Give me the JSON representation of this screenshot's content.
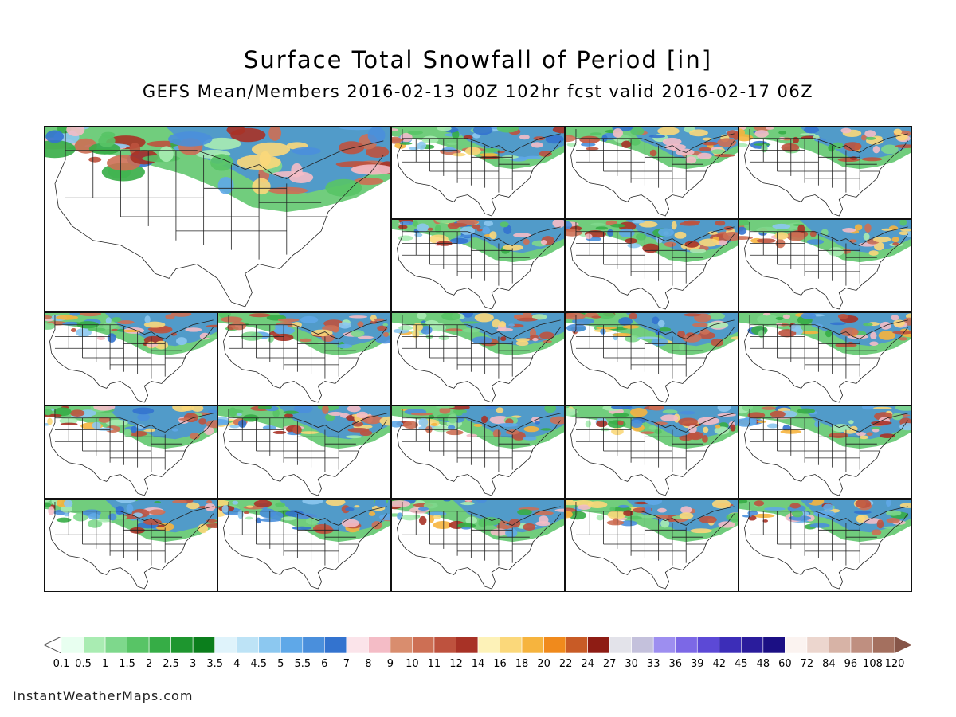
{
  "title": "Surface Total Snowfall of Period [in]",
  "subtitle": "GEFS Mean/Members 2016-02-13 00Z 102hr fcst valid 2016-02-17 06Z",
  "source_credit": "InstantWeatherMaps.com",
  "grid": {
    "rows": 5,
    "cols": 5,
    "mean_panel": "2x2 top-left",
    "member_panels": 21
  },
  "colorbar": {
    "bins": [
      {
        "label": "0.1",
        "color": "#e8fff0"
      },
      {
        "label": "0.5",
        "color": "#a9ecb2"
      },
      {
        "label": "1",
        "color": "#7ed88c"
      },
      {
        "label": "1.5",
        "color": "#58c466"
      },
      {
        "label": "2",
        "color": "#36ad46"
      },
      {
        "label": "2.5",
        "color": "#1e962f"
      },
      {
        "label": "3",
        "color": "#0b7e1c"
      },
      {
        "label": "3.5",
        "color": "#dff3fb"
      },
      {
        "label": "4",
        "color": "#bde3f6"
      },
      {
        "label": "4.5",
        "color": "#8cc8f0"
      },
      {
        "label": "5",
        "color": "#5fa8e8"
      },
      {
        "label": "5.5",
        "color": "#4a8fdc"
      },
      {
        "label": "6",
        "color": "#3373cf"
      },
      {
        "label": "7",
        "color": "#fbe4ea"
      },
      {
        "label": "8",
        "color": "#f4bcc6"
      },
      {
        "label": "9",
        "color": "#d98d6e"
      },
      {
        "label": "10",
        "color": "#cd6f54"
      },
      {
        "label": "11",
        "color": "#be523e"
      },
      {
        "label": "12",
        "color": "#a83226"
      },
      {
        "label": "14",
        "color": "#fdf2b8"
      },
      {
        "label": "16",
        "color": "#fbd87a"
      },
      {
        "label": "18",
        "color": "#f6b43e"
      },
      {
        "label": "20",
        "color": "#f08a1c"
      },
      {
        "label": "22",
        "color": "#c85b26"
      },
      {
        "label": "24",
        "color": "#8e1c14"
      },
      {
        "label": "27",
        "color": "#e3e3ea"
      },
      {
        "label": "30",
        "color": "#c4c1dc"
      },
      {
        "label": "33",
        "color": "#9d8ef0"
      },
      {
        "label": "36",
        "color": "#7c68e6"
      },
      {
        "label": "39",
        "color": "#5c49d6"
      },
      {
        "label": "42",
        "color": "#3c2db8"
      },
      {
        "label": "45",
        "color": "#2a1c9c"
      },
      {
        "label": "48",
        "color": "#1b0f84"
      },
      {
        "label": "60",
        "color": "#fbf3f0"
      },
      {
        "label": "72",
        "color": "#ecd6ce"
      },
      {
        "label": "84",
        "color": "#d7b3a6"
      },
      {
        "label": "96",
        "color": "#bf8f80"
      },
      {
        "label": "108",
        "color": "#a4705f"
      },
      {
        "label": "120",
        "color": "#865548"
      }
    ]
  }
}
